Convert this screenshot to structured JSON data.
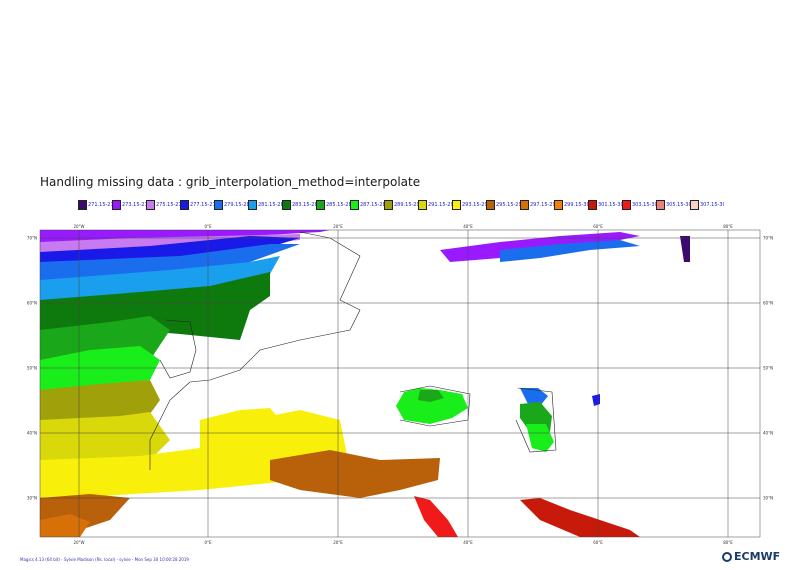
{
  "title": "Handling missing data : grib_interpolation_method=interpolate",
  "legend": [
    {
      "label": "271.15-27",
      "color": "#3a0a6e"
    },
    {
      "label": "273.15-27",
      "color": "#9a1aff"
    },
    {
      "label": "275.15-27",
      "color": "#c87af0"
    },
    {
      "label": "277.15-27",
      "color": "#1a1ae8"
    },
    {
      "label": "279.15-28",
      "color": "#1a6eee"
    },
    {
      "label": "281.15-28",
      "color": "#1a9eee"
    },
    {
      "label": "283.15-28",
      "color": "#0e7a0e"
    },
    {
      "label": "285.15-28",
      "color": "#1aa81a"
    },
    {
      "label": "287.15-28",
      "color": "#1aee1a"
    },
    {
      "label": "289.15-29",
      "color": "#a0a00a"
    },
    {
      "label": "291.15-29",
      "color": "#d8d80a"
    },
    {
      "label": "293.15-29",
      "color": "#f8f00a"
    },
    {
      "label": "295.15-29",
      "color": "#b8600a"
    },
    {
      "label": "297.15-29",
      "color": "#d8700a"
    },
    {
      "label": "299.15-30",
      "color": "#f0800a"
    },
    {
      "label": "301.15-30",
      "color": "#c81a0a"
    },
    {
      "label": "303.15-30",
      "color": "#f01a1a"
    },
    {
      "label": "305.15-30",
      "color": "#f08080"
    },
    {
      "label": "307.15-309.15",
      "color": "#f8d0c8"
    }
  ],
  "axes": {
    "lon_labels": [
      "20°W",
      "0°E",
      "20°E",
      "40°E",
      "60°E",
      "80°E"
    ],
    "lat_labels": [
      "70°N",
      "60°N",
      "50°N",
      "40°N",
      "30°N"
    ]
  },
  "footer": "Magics 4.13 (64 bit) - Sylvie Madison (Rk. local) - sylvie - Mon Sep 30 10:00:28 2019",
  "logo": "ECMWF"
}
